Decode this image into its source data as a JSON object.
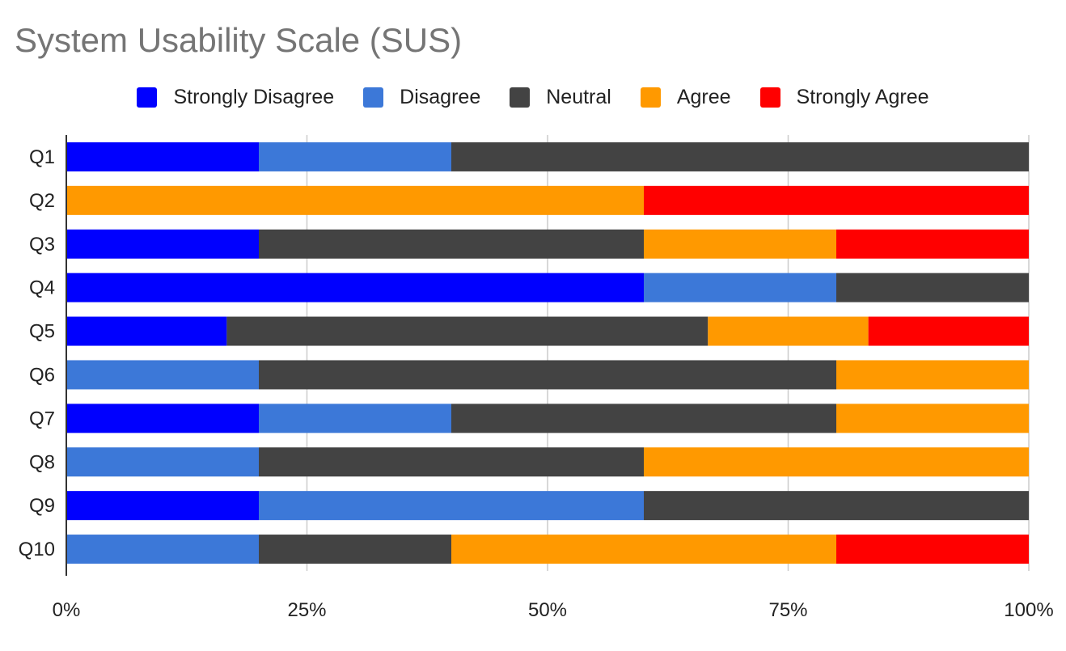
{
  "chart_data": {
    "type": "bar",
    "orientation": "horizontal",
    "stacked": "percent",
    "title": "System Usability Scale (SUS)",
    "categories": [
      "Q1",
      "Q2",
      "Q3",
      "Q4",
      "Q5",
      "Q6",
      "Q7",
      "Q8",
      "Q9",
      "Q10"
    ],
    "series": [
      {
        "name": "Strongly Disagree",
        "color": "#0000ff",
        "values": [
          20,
          0,
          20,
          60,
          16.67,
          0,
          20,
          0,
          20,
          0
        ]
      },
      {
        "name": "Disagree",
        "color": "#3c78d8",
        "values": [
          20,
          0,
          0,
          20,
          0,
          20,
          20,
          20,
          40,
          20
        ]
      },
      {
        "name": "Neutral",
        "color": "#434343",
        "values": [
          60,
          0,
          40,
          20,
          50,
          60,
          40,
          40,
          40,
          20
        ]
      },
      {
        "name": "Agree",
        "color": "#ff9900",
        "values": [
          0,
          60,
          20,
          0,
          16.67,
          20,
          20,
          40,
          0,
          40
        ]
      },
      {
        "name": "Strongly Agree",
        "color": "#ff0000",
        "values": [
          0,
          40,
          20,
          0,
          16.67,
          0,
          0,
          0,
          0,
          20
        ]
      }
    ],
    "x_ticks": [
      "0%",
      "25%",
      "50%",
      "75%",
      "100%"
    ],
    "xlim": [
      0,
      100
    ],
    "grid": "vertical",
    "legend_position": "top"
  }
}
